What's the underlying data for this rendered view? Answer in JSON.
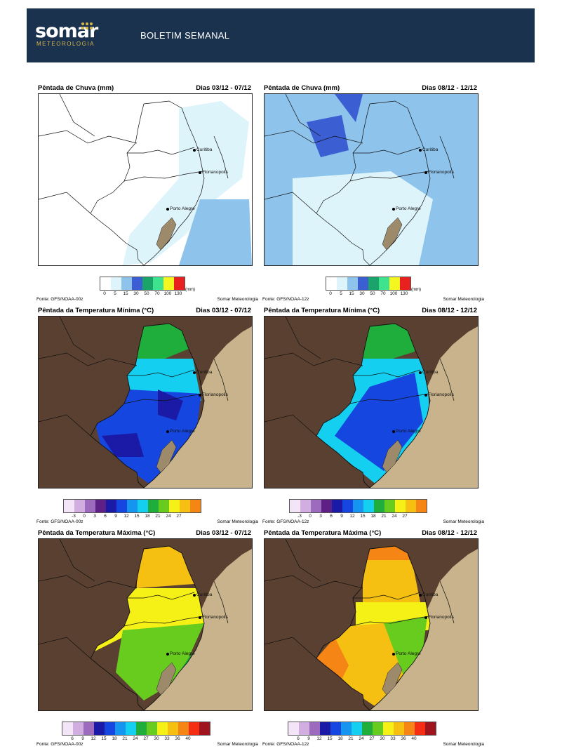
{
  "header": {
    "logo_word": "somar",
    "logo_sub": "METEOROLOGIA",
    "title": "BOLETIM SEMANAL"
  },
  "colors": {
    "header_bg": "#1b324f",
    "land_other": "#5a4030",
    "ocean": "#c8b38c"
  },
  "cities": [
    "Curitiba",
    "Florianopolis",
    "Porto Alegre"
  ],
  "legends": {
    "chuva": {
      "ticks": [
        "0",
        "5",
        "15",
        "30",
        "50",
        "70",
        "100",
        "130"
      ],
      "unit": "(mm)",
      "colors": [
        "#ffffff",
        "#def4fb",
        "#8ec3ec",
        "#3b5fd3",
        "#1aa46a",
        "#3fe38d",
        "#f5f520",
        "#e8201f"
      ]
    },
    "tmin": {
      "ticks": [
        "-3",
        "0",
        "3",
        "6",
        "9",
        "12",
        "15",
        "18",
        "21",
        "24",
        "27"
      ],
      "colors": [
        "#f3e4f7",
        "#d2aee0",
        "#9c6bbe",
        "#5e1f86",
        "#1a1aa6",
        "#1646e0",
        "#1695f0",
        "#14cff0",
        "#1fad3c",
        "#68cc1e",
        "#f5f015",
        "#f5c011",
        "#f58514"
      ]
    },
    "tmax": {
      "ticks": [
        "6",
        "9",
        "12",
        "15",
        "18",
        "21",
        "24",
        "27",
        "30",
        "33",
        "36",
        "40"
      ],
      "colors": [
        "#f3e4f7",
        "#d2aee0",
        "#9c6bbe",
        "#1a1aa6",
        "#1646e0",
        "#1695f0",
        "#14cff0",
        "#1fad3c",
        "#68cc1e",
        "#f5f015",
        "#f5c011",
        "#f58514",
        "#f52d14",
        "#a0141e"
      ]
    }
  },
  "panels": [
    {
      "title": "Pêntada de Chuva (mm)",
      "dates": "Dias 03/12 - 07/12",
      "source": "Fonte: GFS/NOAA-00z",
      "credit": "Somar Meteorologia",
      "kind": "chuva",
      "variant": "a"
    },
    {
      "title": "Pêntada de Chuva (mm)",
      "dates": "Dias 08/12 - 12/12",
      "source": "Fonte: GFS/NOAA-12z",
      "credit": "Somar Meteorologia",
      "kind": "chuva",
      "variant": "b"
    },
    {
      "title": "Pêntada da Temperatura Mínima (°C)",
      "dates": "Dias 03/12 - 07/12",
      "source": "Fonte: GFS/NOAA-00z",
      "credit": "Somar Meteorologia",
      "kind": "tmin",
      "variant": "a"
    },
    {
      "title": "Pêntada da Temperatura Mínima (°C)",
      "dates": "Dias 08/12 - 12/12",
      "source": "Fonte: GFS/NOAA-12z",
      "credit": "Somar Meteorologia",
      "kind": "tmin",
      "variant": "b"
    },
    {
      "title": "Pêntada da Temperatura Máxima (°C)",
      "dates": "Dias 03/12 - 07/12",
      "source": "Fonte: GFS/NOAA-00z",
      "credit": "Somar Meteorologia",
      "kind": "tmax",
      "variant": "a"
    },
    {
      "title": "Pêntada da Temperatura Máxima (°C)",
      "dates": "Dias 08/12 - 12/12",
      "source": "Fonte: GFS/NOAA-12z",
      "credit": "Somar Meteorologia",
      "kind": "tmax",
      "variant": "b"
    }
  ]
}
